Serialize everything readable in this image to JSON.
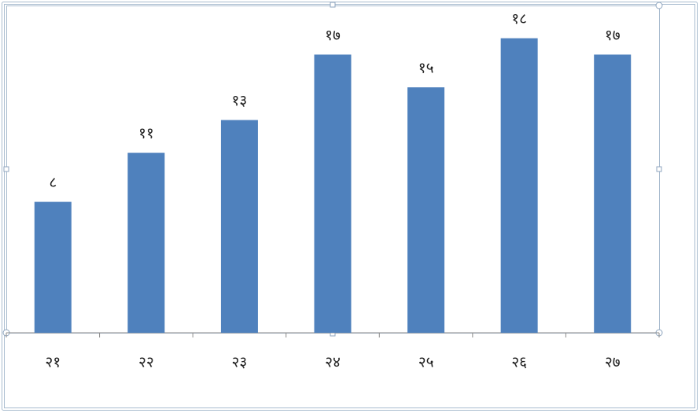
{
  "chart_data": {
    "type": "bar",
    "categories": [
      "२१",
      "२२",
      "२३",
      "२४",
      "२५",
      "२६",
      "२७"
    ],
    "values": [
      8,
      11,
      13,
      17,
      15,
      18,
      17
    ],
    "value_labels": [
      "८",
      "११",
      "१३",
      "१७",
      "१५",
      "१८",
      "१७"
    ],
    "color": "#4f81bd",
    "ylim": [
      0,
      20
    ]
  }
}
